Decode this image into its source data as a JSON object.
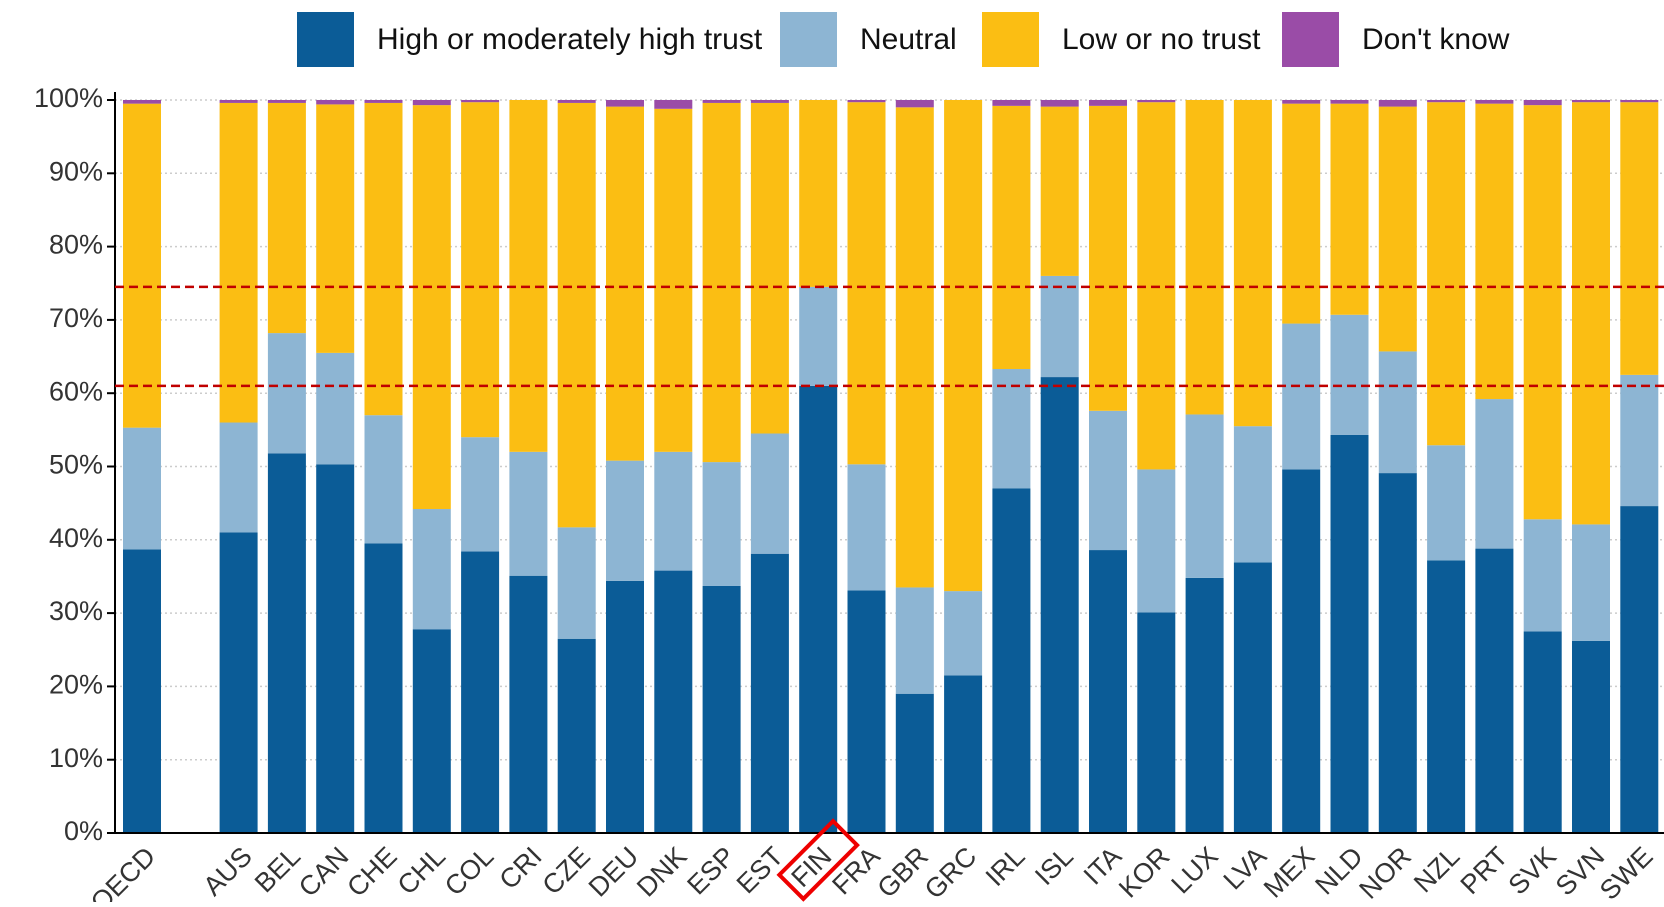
{
  "chart_data": {
    "type": "stacked_bar",
    "categories": [
      "OECD",
      null,
      "AUS",
      "BEL",
      "CAN",
      "CHE",
      "CHL",
      "COL",
      "CRI",
      "CZE",
      "DEU",
      "DNK",
      "ESP",
      "EST",
      "FIN",
      "FRA",
      "GBR",
      "GRC",
      "IRL",
      "ISL",
      "ITA",
      "KOR",
      "LUX",
      "LVA",
      "MEX",
      "NLD",
      "NOR",
      "NZL",
      "PRT",
      "SVK",
      "SVN",
      "SWE"
    ],
    "series": [
      {
        "name": "High or moderately high trust",
        "color": "#0b5c97",
        "values": [
          38.7,
          null,
          41,
          51.8,
          50.3,
          39.5,
          27.8,
          38.4,
          35.1,
          26.5,
          34.4,
          35.8,
          33.7,
          38.1,
          61,
          33.1,
          19,
          21.5,
          47,
          62.2,
          38.6,
          30.1,
          34.8,
          36.9,
          49.6,
          54.3,
          49.1,
          37.2,
          38.8,
          27.5,
          26.2,
          44.6
        ]
      },
      {
        "name": "Neutral",
        "color": "#8db5d3",
        "values": [
          16.6,
          null,
          15,
          16.4,
          15.2,
          17.5,
          16.4,
          15.6,
          16.9,
          15.2,
          16.4,
          16.2,
          16.9,
          16.4,
          13.5,
          17.2,
          14.5,
          11.5,
          16.3,
          13.8,
          19,
          19.5,
          22.3,
          18.6,
          19.9,
          16.4,
          16.6,
          15.7,
          20.4,
          15.3,
          15.9,
          17.9
        ]
      },
      {
        "name": "Low or no trust",
        "color": "#fbbe13",
        "values": [
          44.2,
          null,
          43.6,
          31.4,
          33.9,
          42.6,
          55.1,
          45.7,
          48,
          57.9,
          48.3,
          46.8,
          49,
          45.1,
          25.5,
          49.4,
          65.5,
          67,
          35.9,
          23.1,
          41.6,
          50.1,
          42.9,
          44.5,
          30,
          28.8,
          33.4,
          46.8,
          40.3,
          56.5,
          57.6,
          37.2
        ]
      },
      {
        "name": "Don't know",
        "color": "#9a4ca7",
        "values": [
          0.5,
          null,
          0.4,
          0.4,
          0.6,
          0.4,
          0.7,
          0.3,
          0,
          0.4,
          0.9,
          1.2,
          0.4,
          0.4,
          0,
          0.3,
          1,
          0,
          0.8,
          0.9,
          0.8,
          0.3,
          0,
          0,
          0.5,
          0.5,
          0.9,
          0.3,
          0.5,
          0.7,
          0.3,
          0.3
        ]
      }
    ],
    "ylim": [
      0,
      100
    ],
    "yticks": [
      {
        "value": 0,
        "label": "0%"
      },
      {
        "value": 10,
        "label": "10%"
      },
      {
        "value": 20,
        "label": "20%"
      },
      {
        "value": 30,
        "label": "30%"
      },
      {
        "value": 40,
        "label": "40%"
      },
      {
        "value": 50,
        "label": "50%"
      },
      {
        "value": 60,
        "label": "60%"
      },
      {
        "value": 70,
        "label": "70%"
      },
      {
        "value": 80,
        "label": "80%"
      },
      {
        "value": 90,
        "label": "90%"
      },
      {
        "value": 100,
        "label": "100%"
      }
    ],
    "grid": true,
    "legend": "top"
  }
}
